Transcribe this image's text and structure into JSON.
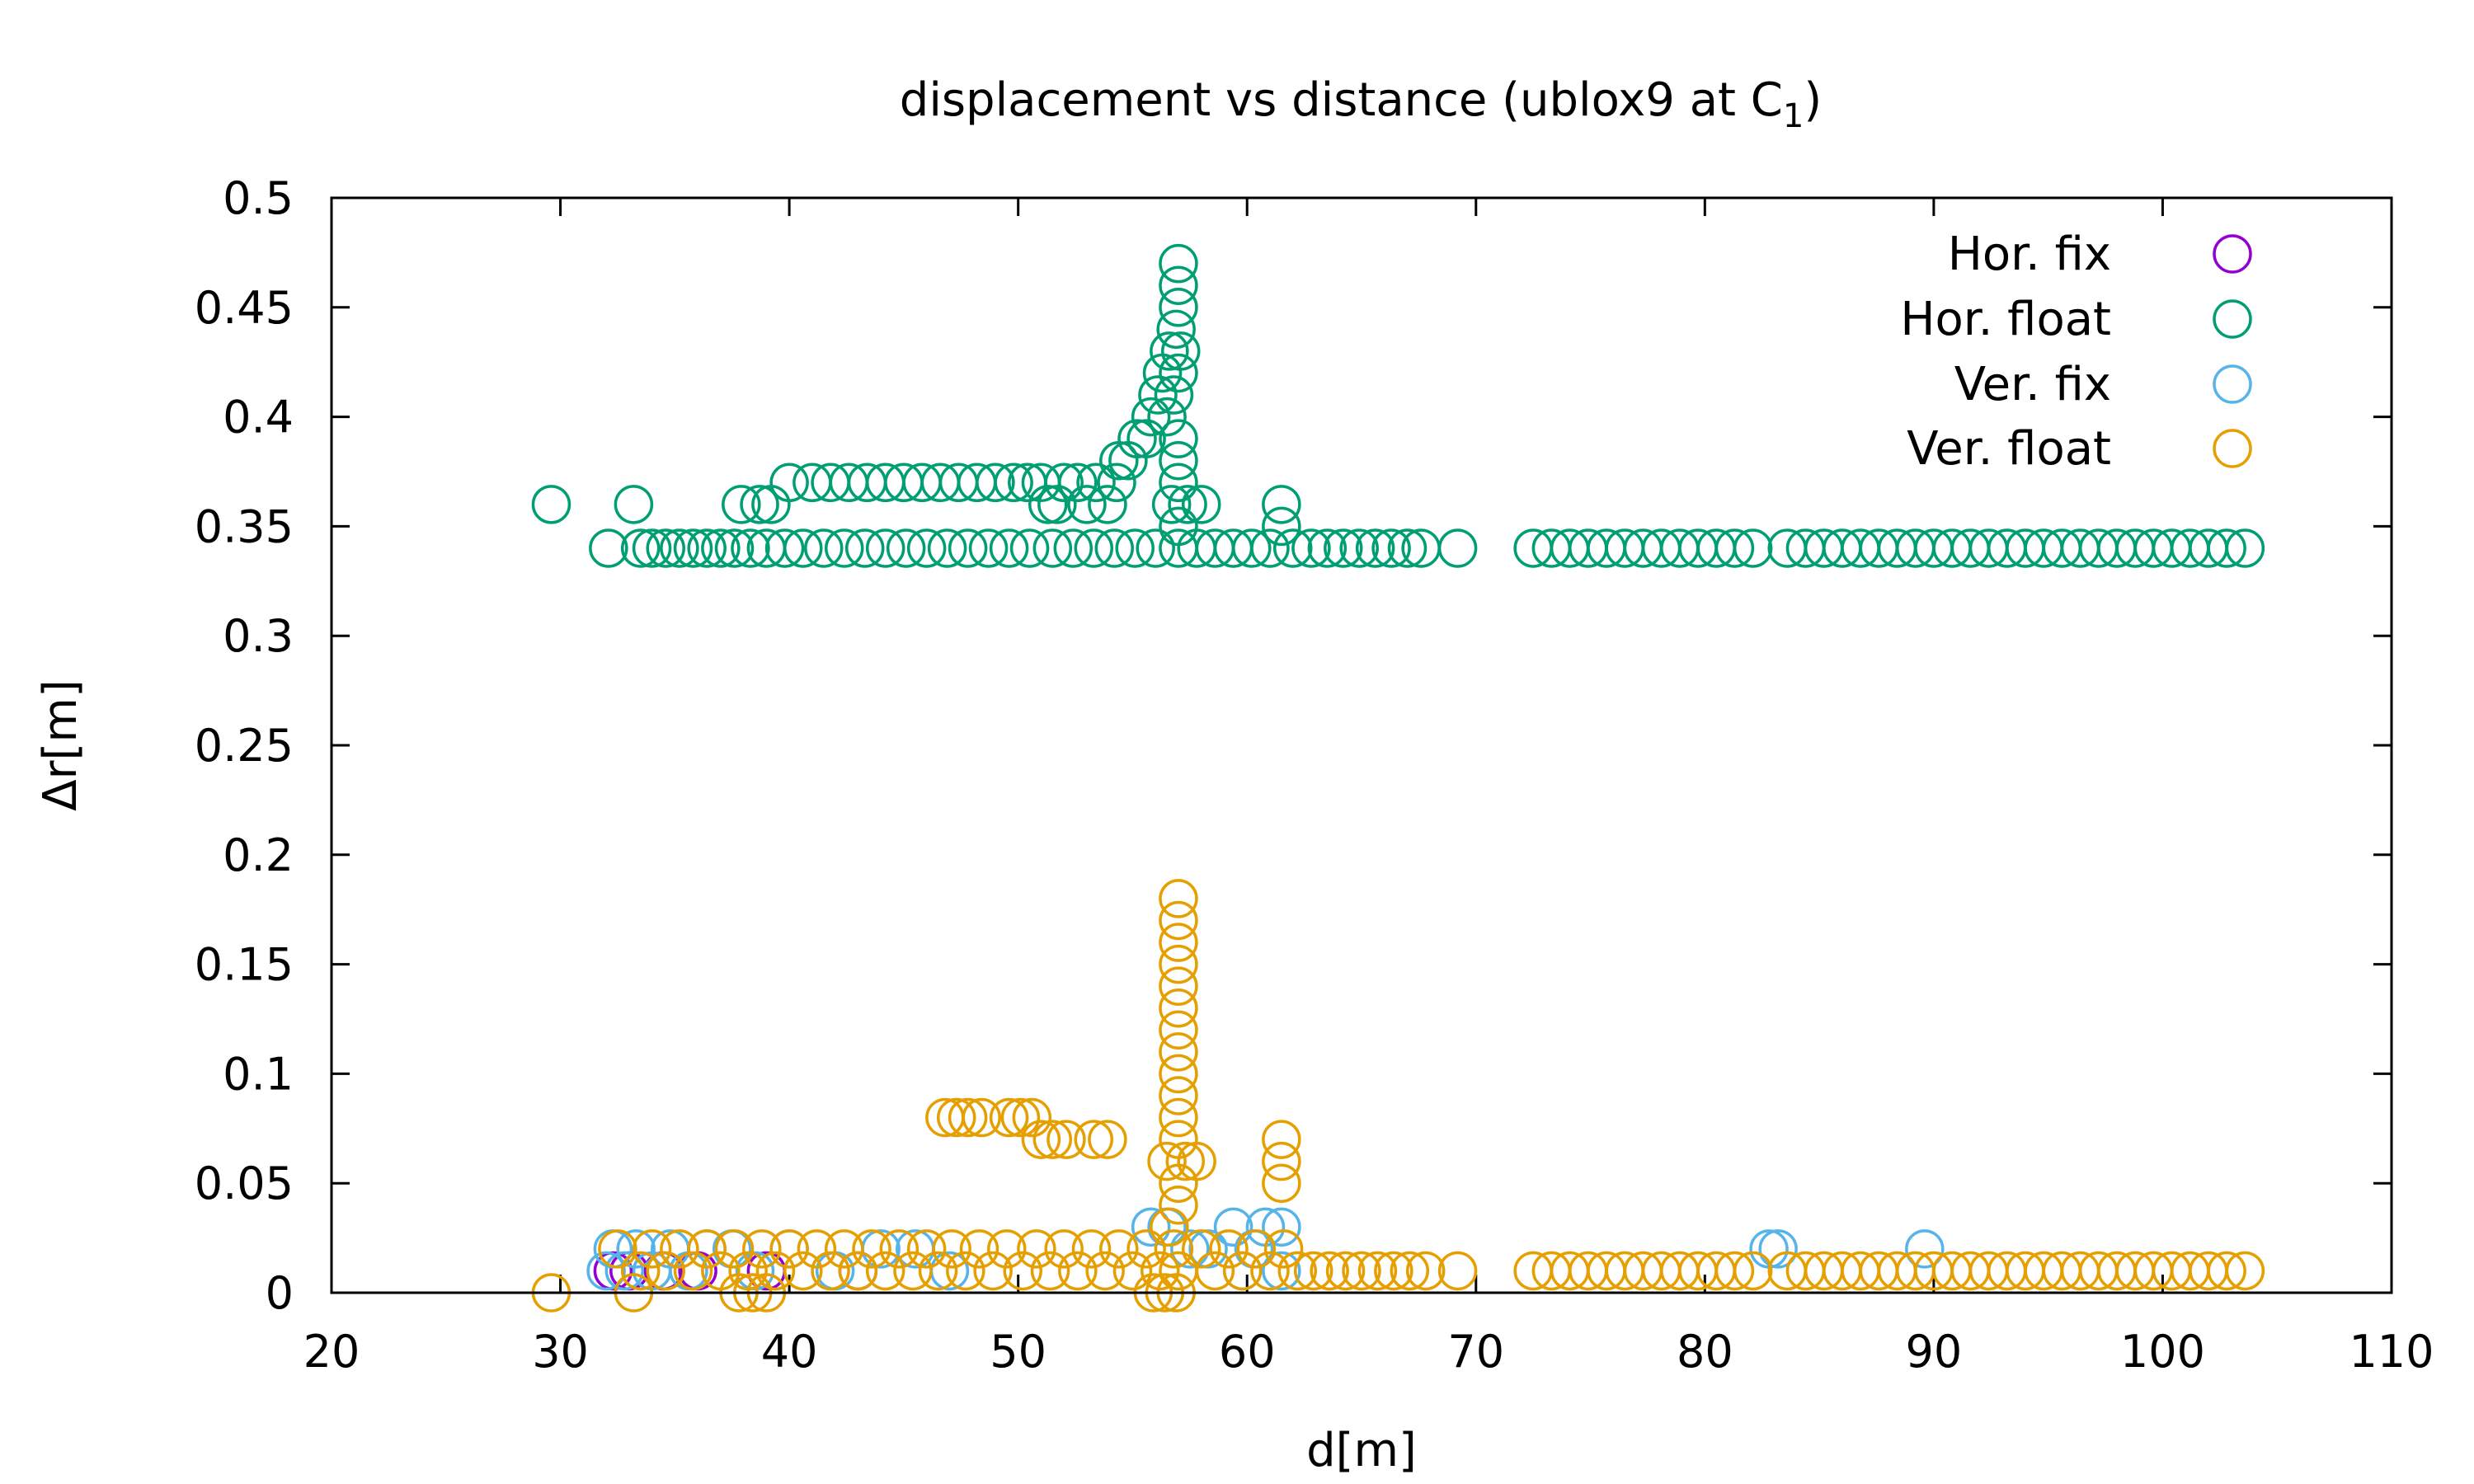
{
  "chart_data": {
    "type": "scatter",
    "title": "displacement vs distance (ublox9 at C",
    "title_subscript": "1",
    "title_close": ")",
    "xlabel": "d[m]",
    "ylabel": "Δr[m]",
    "xlim": [
      20,
      110
    ],
    "ylim": [
      0,
      0.5
    ],
    "xticks": [
      "20",
      "30",
      "40",
      "50",
      "60",
      "70",
      "80",
      "90",
      "100",
      "110"
    ],
    "yticks": [
      "0",
      "0.05",
      "0.1",
      "0.15",
      "0.2",
      "0.25",
      "0.3",
      "0.35",
      "0.4",
      "0.45",
      "0.5"
    ],
    "grid": false,
    "legend_position": "top-right",
    "marker": "open-circle",
    "series": [
      {
        "name": "Hor. fix",
        "color": "#9400d3",
        "points": [
          [
            32.3,
            0.01
          ],
          [
            33.0,
            0.01
          ],
          [
            34.5,
            0.01
          ],
          [
            36.0,
            0.01
          ],
          [
            39.0,
            0.01
          ],
          [
            43.0,
            0.01
          ]
        ]
      },
      {
        "name": "Hor. float",
        "color": "#009e73",
        "points": [
          [
            29.6,
            0.36
          ],
          [
            32.1,
            0.34
          ],
          [
            33.2,
            0.36
          ],
          [
            33.5,
            0.34
          ],
          [
            34.0,
            0.34
          ],
          [
            34.6,
            0.34
          ],
          [
            35.2,
            0.34
          ],
          [
            35.8,
            0.34
          ],
          [
            36.4,
            0.34
          ],
          [
            37.0,
            0.34
          ],
          [
            37.6,
            0.34
          ],
          [
            37.9,
            0.36
          ],
          [
            38.3,
            0.34
          ],
          [
            38.7,
            0.36
          ],
          [
            39.0,
            0.34
          ],
          [
            39.2,
            0.36
          ],
          [
            39.8,
            0.34
          ],
          [
            40.0,
            0.37
          ],
          [
            40.6,
            0.34
          ],
          [
            41.0,
            0.37
          ],
          [
            41.5,
            0.34
          ],
          [
            41.8,
            0.37
          ],
          [
            42.4,
            0.34
          ],
          [
            42.6,
            0.37
          ],
          [
            43.3,
            0.34
          ],
          [
            43.4,
            0.37
          ],
          [
            44.2,
            0.34
          ],
          [
            44.2,
            0.37
          ],
          [
            45.0,
            0.37
          ],
          [
            45.1,
            0.34
          ],
          [
            45.8,
            0.37
          ],
          [
            46.0,
            0.34
          ],
          [
            46.6,
            0.37
          ],
          [
            46.9,
            0.34
          ],
          [
            47.4,
            0.37
          ],
          [
            47.8,
            0.34
          ],
          [
            48.2,
            0.37
          ],
          [
            48.7,
            0.34
          ],
          [
            49.0,
            0.37
          ],
          [
            49.6,
            0.34
          ],
          [
            49.8,
            0.37
          ],
          [
            50.4,
            0.37
          ],
          [
            50.5,
            0.34
          ],
          [
            51.0,
            0.37
          ],
          [
            51.3,
            0.36
          ],
          [
            51.5,
            0.34
          ],
          [
            51.7,
            0.36
          ],
          [
            52.0,
            0.37
          ],
          [
            52.4,
            0.34
          ],
          [
            52.6,
            0.37
          ],
          [
            53.0,
            0.36
          ],
          [
            53.3,
            0.34
          ],
          [
            53.4,
            0.37
          ],
          [
            53.9,
            0.36
          ],
          [
            54.2,
            0.34
          ],
          [
            54.3,
            0.37
          ],
          [
            54.4,
            0.38
          ],
          [
            54.8,
            0.38
          ],
          [
            55.1,
            0.34
          ],
          [
            55.2,
            0.39
          ],
          [
            55.6,
            0.39
          ],
          [
            55.8,
            0.4
          ],
          [
            56.0,
            0.34
          ],
          [
            56.1,
            0.41
          ],
          [
            56.3,
            0.42
          ],
          [
            56.5,
            0.4
          ],
          [
            56.6,
            0.43
          ],
          [
            56.7,
            0.36
          ],
          [
            56.8,
            0.41
          ],
          [
            56.9,
            0.44
          ],
          [
            57.0,
            0.34
          ],
          [
            57.0,
            0.35
          ],
          [
            57.0,
            0.37
          ],
          [
            57.0,
            0.38
          ],
          [
            57.0,
            0.39
          ],
          [
            57.0,
            0.42
          ],
          [
            57.0,
            0.45
          ],
          [
            57.0,
            0.46
          ],
          [
            57.0,
            0.47
          ],
          [
            57.1,
            0.43
          ],
          [
            57.4,
            0.36
          ],
          [
            57.8,
            0.34
          ],
          [
            58.0,
            0.36
          ],
          [
            58.6,
            0.34
          ],
          [
            59.4,
            0.34
          ],
          [
            60.2,
            0.34
          ],
          [
            61.0,
            0.34
          ],
          [
            61.5,
            0.36
          ],
          [
            61.5,
            0.35
          ],
          [
            62.0,
            0.34
          ],
          [
            62.8,
            0.34
          ],
          [
            63.5,
            0.34
          ],
          [
            64.2,
            0.34
          ],
          [
            64.9,
            0.34
          ],
          [
            65.6,
            0.34
          ],
          [
            66.3,
            0.34
          ],
          [
            67.0,
            0.34
          ],
          [
            67.6,
            0.34
          ],
          [
            69.2,
            0.34
          ],
          [
            72.5,
            0.34
          ],
          [
            73.3,
            0.34
          ],
          [
            74.1,
            0.34
          ],
          [
            74.9,
            0.34
          ],
          [
            75.7,
            0.34
          ],
          [
            76.5,
            0.34
          ],
          [
            77.3,
            0.34
          ],
          [
            78.1,
            0.34
          ],
          [
            78.9,
            0.34
          ],
          [
            79.7,
            0.34
          ],
          [
            80.5,
            0.34
          ],
          [
            81.3,
            0.34
          ],
          [
            82.1,
            0.34
          ],
          [
            83.6,
            0.34
          ],
          [
            84.4,
            0.34
          ],
          [
            85.2,
            0.34
          ],
          [
            86.0,
            0.34
          ],
          [
            86.8,
            0.34
          ],
          [
            87.6,
            0.34
          ],
          [
            88.4,
            0.34
          ],
          [
            89.2,
            0.34
          ],
          [
            90.0,
            0.34
          ],
          [
            90.8,
            0.34
          ],
          [
            91.6,
            0.34
          ],
          [
            92.4,
            0.34
          ],
          [
            93.2,
            0.34
          ],
          [
            94.0,
            0.34
          ],
          [
            94.8,
            0.34
          ],
          [
            95.6,
            0.34
          ],
          [
            96.4,
            0.34
          ],
          [
            97.2,
            0.34
          ],
          [
            98.0,
            0.34
          ],
          [
            98.8,
            0.34
          ],
          [
            99.6,
            0.34
          ],
          [
            100.4,
            0.34
          ],
          [
            101.2,
            0.34
          ],
          [
            102.0,
            0.34
          ],
          [
            102.8,
            0.34
          ],
          [
            103.6,
            0.34
          ]
        ]
      },
      {
        "name": "Ver. fix",
        "color": "#56b4e9",
        "points": [
          [
            32.0,
            0.01
          ],
          [
            32.3,
            0.02
          ],
          [
            32.8,
            0.01
          ],
          [
            33.3,
            0.02
          ],
          [
            34.0,
            0.01
          ],
          [
            34.8,
            0.02
          ],
          [
            35.6,
            0.01
          ],
          [
            36.4,
            0.02
          ],
          [
            37.5,
            0.02
          ],
          [
            38.5,
            0.01
          ],
          [
            40.0,
            0.02
          ],
          [
            42.0,
            0.01
          ],
          [
            44.0,
            0.02
          ],
          [
            45.5,
            0.02
          ],
          [
            47.0,
            0.01
          ],
          [
            55.8,
            0.03
          ],
          [
            56.5,
            0.03
          ],
          [
            57.5,
            0.02
          ],
          [
            58.3,
            0.02
          ],
          [
            59.4,
            0.03
          ],
          [
            59.8,
            0.01
          ],
          [
            60.3,
            0.02
          ],
          [
            60.8,
            0.03
          ],
          [
            61.5,
            0.03
          ],
          [
            61.5,
            0.01
          ],
          [
            82.8,
            0.02
          ],
          [
            83.2,
            0.02
          ],
          [
            89.6,
            0.02
          ]
        ]
      },
      {
        "name": "Ver. float",
        "color": "#e69f00",
        "points": [
          [
            29.6,
            0.0
          ],
          [
            32.5,
            0.02
          ],
          [
            33.2,
            0.0
          ],
          [
            33.5,
            0.01
          ],
          [
            34.0,
            0.02
          ],
          [
            34.6,
            0.01
          ],
          [
            35.2,
            0.02
          ],
          [
            35.8,
            0.01
          ],
          [
            36.4,
            0.02
          ],
          [
            37.0,
            0.01
          ],
          [
            37.6,
            0.02
          ],
          [
            37.8,
            0.0
          ],
          [
            38.2,
            0.01
          ],
          [
            38.4,
            0.0
          ],
          [
            38.8,
            0.02
          ],
          [
            39.0,
            0.0
          ],
          [
            39.4,
            0.01
          ],
          [
            40.0,
            0.02
          ],
          [
            40.6,
            0.01
          ],
          [
            41.2,
            0.02
          ],
          [
            41.8,
            0.01
          ],
          [
            42.4,
            0.02
          ],
          [
            43.0,
            0.01
          ],
          [
            43.6,
            0.02
          ],
          [
            44.2,
            0.01
          ],
          [
            44.8,
            0.02
          ],
          [
            45.4,
            0.01
          ],
          [
            46.0,
            0.02
          ],
          [
            46.5,
            0.01
          ],
          [
            46.8,
            0.08
          ],
          [
            47.1,
            0.02
          ],
          [
            47.3,
            0.08
          ],
          [
            47.7,
            0.01
          ],
          [
            47.8,
            0.08
          ],
          [
            48.3,
            0.02
          ],
          [
            48.4,
            0.08
          ],
          [
            48.9,
            0.01
          ],
          [
            49.5,
            0.02
          ],
          [
            49.6,
            0.08
          ],
          [
            50.1,
            0.08
          ],
          [
            50.2,
            0.01
          ],
          [
            50.6,
            0.08
          ],
          [
            50.8,
            0.02
          ],
          [
            51.0,
            0.07
          ],
          [
            51.4,
            0.01
          ],
          [
            51.5,
            0.07
          ],
          [
            52.0,
            0.02
          ],
          [
            52.1,
            0.07
          ],
          [
            52.6,
            0.01
          ],
          [
            53.2,
            0.02
          ],
          [
            53.3,
            0.07
          ],
          [
            53.8,
            0.01
          ],
          [
            53.9,
            0.07
          ],
          [
            54.4,
            0.02
          ],
          [
            55.0,
            0.01
          ],
          [
            55.6,
            0.02
          ],
          [
            55.9,
            0.0
          ],
          [
            56.2,
            0.01
          ],
          [
            56.4,
            0.0
          ],
          [
            56.5,
            0.06
          ],
          [
            56.6,
            0.03
          ],
          [
            56.8,
            0.02
          ],
          [
            56.9,
            0.0
          ],
          [
            57.0,
            0.01
          ],
          [
            57.0,
            0.04
          ],
          [
            57.0,
            0.05
          ],
          [
            57.0,
            0.07
          ],
          [
            57.0,
            0.08
          ],
          [
            57.0,
            0.09
          ],
          [
            57.0,
            0.1
          ],
          [
            57.0,
            0.11
          ],
          [
            57.0,
            0.12
          ],
          [
            57.0,
            0.13
          ],
          [
            57.0,
            0.14
          ],
          [
            57.0,
            0.15
          ],
          [
            57.0,
            0.16
          ],
          [
            57.0,
            0.17
          ],
          [
            57.0,
            0.18
          ],
          [
            57.3,
            0.06
          ],
          [
            57.8,
            0.06
          ],
          [
            58.0,
            0.02
          ],
          [
            58.6,
            0.01
          ],
          [
            59.2,
            0.02
          ],
          [
            59.8,
            0.01
          ],
          [
            60.4,
            0.02
          ],
          [
            61.0,
            0.01
          ],
          [
            61.5,
            0.07
          ],
          [
            61.5,
            0.06
          ],
          [
            61.5,
            0.05
          ],
          [
            61.6,
            0.02
          ],
          [
            62.2,
            0.01
          ],
          [
            62.9,
            0.01
          ],
          [
            63.6,
            0.01
          ],
          [
            64.3,
            0.01
          ],
          [
            65.0,
            0.01
          ],
          [
            65.7,
            0.01
          ],
          [
            66.4,
            0.01
          ],
          [
            67.1,
            0.01
          ],
          [
            67.8,
            0.01
          ],
          [
            69.2,
            0.01
          ],
          [
            72.5,
            0.01
          ],
          [
            73.3,
            0.01
          ],
          [
            74.1,
            0.01
          ],
          [
            74.9,
            0.01
          ],
          [
            75.7,
            0.01
          ],
          [
            76.5,
            0.01
          ],
          [
            77.3,
            0.01
          ],
          [
            78.1,
            0.01
          ],
          [
            78.9,
            0.01
          ],
          [
            79.7,
            0.01
          ],
          [
            80.5,
            0.01
          ],
          [
            81.3,
            0.01
          ],
          [
            82.1,
            0.01
          ],
          [
            83.6,
            0.01
          ],
          [
            84.4,
            0.01
          ],
          [
            85.2,
            0.01
          ],
          [
            86.0,
            0.01
          ],
          [
            86.8,
            0.01
          ],
          [
            87.6,
            0.01
          ],
          [
            88.4,
            0.01
          ],
          [
            89.2,
            0.01
          ],
          [
            90.0,
            0.01
          ],
          [
            90.8,
            0.01
          ],
          [
            91.6,
            0.01
          ],
          [
            92.4,
            0.01
          ],
          [
            93.2,
            0.01
          ],
          [
            94.0,
            0.01
          ],
          [
            94.8,
            0.01
          ],
          [
            95.6,
            0.01
          ],
          [
            96.4,
            0.01
          ],
          [
            97.2,
            0.01
          ],
          [
            98.0,
            0.01
          ],
          [
            98.8,
            0.01
          ],
          [
            99.6,
            0.01
          ],
          [
            100.4,
            0.01
          ],
          [
            101.2,
            0.01
          ],
          [
            102.0,
            0.01
          ],
          [
            102.8,
            0.01
          ],
          [
            103.6,
            0.01
          ]
        ]
      }
    ]
  }
}
